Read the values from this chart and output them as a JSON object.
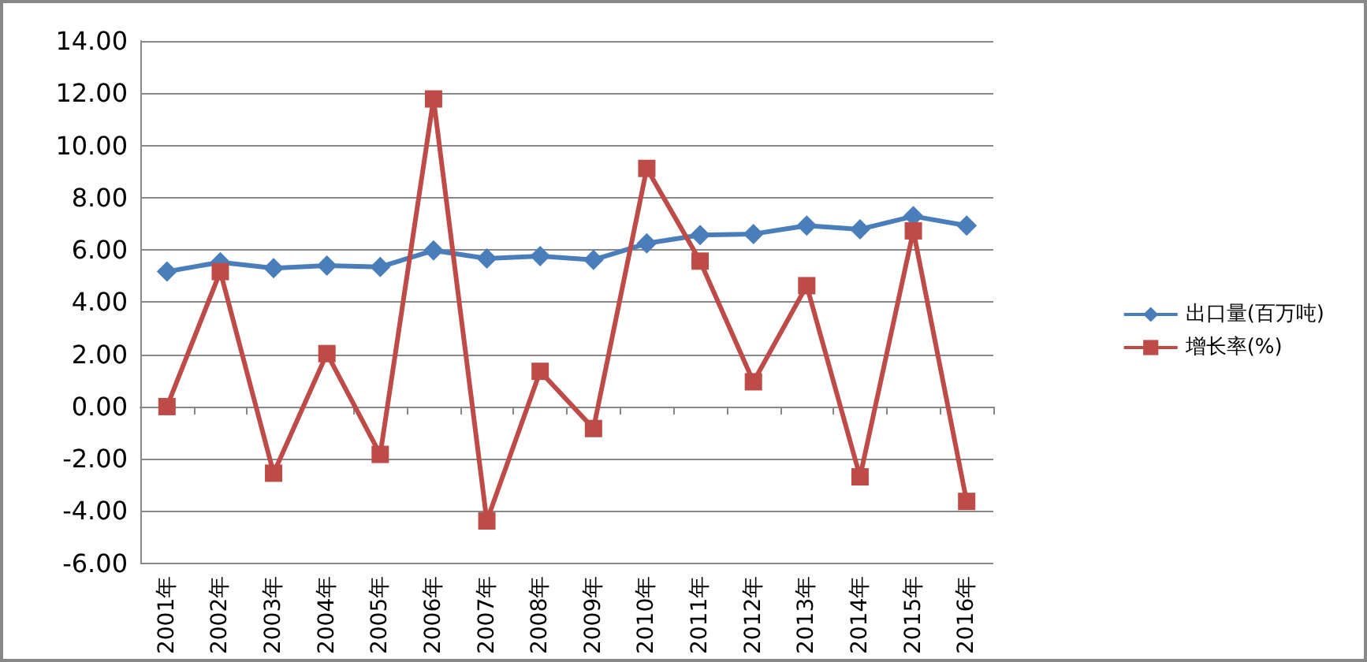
{
  "chart_data": {
    "type": "line",
    "categories": [
      "2001年",
      "2002年",
      "2003年",
      "2004年",
      "2005年",
      "2006年",
      "2007年",
      "2008年",
      "2009年",
      "2010年",
      "2011年",
      "2012年",
      "2013年",
      "2014年",
      "2015年",
      "2016年"
    ],
    "series": [
      {
        "name": "出口量(百万吨)",
        "color": "#4a7ebb",
        "marker": "diamond",
        "values": [
          5.17,
          5.53,
          5.3,
          5.4,
          5.35,
          5.98,
          5.67,
          5.76,
          5.62,
          6.25,
          6.57,
          6.61,
          6.93,
          6.79,
          7.29,
          6.93
        ]
      },
      {
        "name": "增长率(%)",
        "color": "#be4b48",
        "marker": "square",
        "values": [
          0.0,
          5.17,
          -2.55,
          2.03,
          -1.83,
          11.78,
          -4.38,
          1.35,
          -0.84,
          9.12,
          5.57,
          0.95,
          4.63,
          -2.69,
          6.73,
          -3.63
        ]
      }
    ],
    "ylim": [
      -6,
      14
    ],
    "yticks": [
      {
        "value": -6,
        "label": "-6.00"
      },
      {
        "value": -4,
        "label": "-4.00"
      },
      {
        "value": -2,
        "label": "-2.00"
      },
      {
        "value": 0,
        "label": "0.00"
      },
      {
        "value": 2,
        "label": "2.00"
      },
      {
        "value": 4,
        "label": "4.00"
      },
      {
        "value": 6,
        "label": "6.00"
      },
      {
        "value": 8,
        "label": "8.00"
      },
      {
        "value": 10,
        "label": "10.00"
      },
      {
        "value": 12,
        "label": "12.00"
      },
      {
        "value": 14,
        "label": "14.00"
      }
    ],
    "grid": "y",
    "legend": "right",
    "line_style": "solid"
  }
}
